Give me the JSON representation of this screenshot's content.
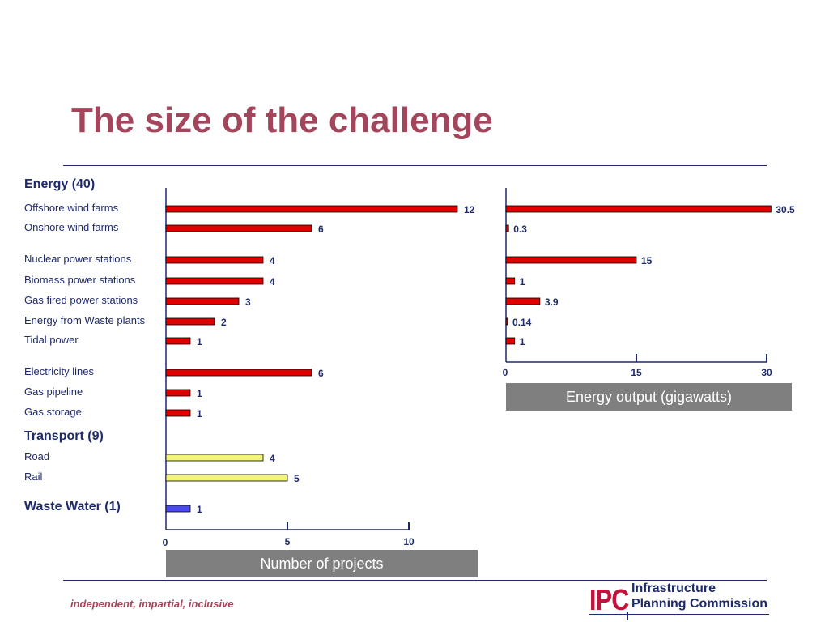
{
  "slide": {
    "title": "The size of the challenge",
    "footer": "independent, impartial, inclusive"
  },
  "logo": {
    "mark": "IPC",
    "line1": "Infrastructure",
    "line2": "Planning Commission"
  },
  "colors": {
    "title": "#a3465c",
    "text": "#1f2a6b",
    "energy_bar": "#e00000",
    "transport_bar": "#f4f47a",
    "waste_water_bar": "#4b4bf0",
    "caption_bg": "#7f7f7f"
  },
  "groups": {
    "energy": "Energy (40)",
    "transport": "Transport (9)",
    "waste_water": "Waste Water (1)"
  },
  "chart_data": [
    {
      "type": "bar",
      "orientation": "horizontal",
      "xlabel": "Number of projects",
      "xlim": [
        0,
        10
      ],
      "xticks": [
        0,
        5,
        10
      ],
      "categories": [
        "Offshore wind farms",
        "Onshore wind farms",
        "Nuclear power stations",
        "Biomass power stations",
        "Gas fired power stations",
        "Energy from Waste plants",
        "Tidal power",
        "Electricity lines",
        "Gas pipeline",
        "Gas storage",
        "Road",
        "Rail",
        "Waste Water (1)"
      ],
      "values": [
        12,
        6,
        4,
        4,
        3,
        2,
        1,
        6,
        1,
        1,
        4,
        5,
        1
      ],
      "labels": [
        "12",
        "6",
        "4",
        "4",
        "3",
        "2",
        "1",
        "6",
        "1",
        "1",
        "4",
        "5",
        "1"
      ],
      "bar_groups": [
        "energy",
        "energy",
        "energy",
        "energy",
        "energy",
        "energy",
        "energy",
        "energy",
        "energy",
        "energy",
        "transport",
        "transport",
        "waste_water"
      ]
    },
    {
      "type": "bar",
      "orientation": "horizontal",
      "xlabel": "Energy output (gigawatts)",
      "xlim": [
        0,
        30
      ],
      "xticks": [
        0,
        15,
        30
      ],
      "categories": [
        "Offshore wind farms",
        "Onshore wind farms",
        "Nuclear power stations",
        "Biomass power stations",
        "Gas fired power stations",
        "Energy from Waste plants",
        "Tidal power"
      ],
      "values": [
        30.5,
        0.3,
        15,
        1,
        3.9,
        0.14,
        1
      ],
      "labels": [
        "30.5",
        "0.3",
        "15",
        "1",
        "3.9",
        "0.14",
        "1"
      ]
    }
  ]
}
